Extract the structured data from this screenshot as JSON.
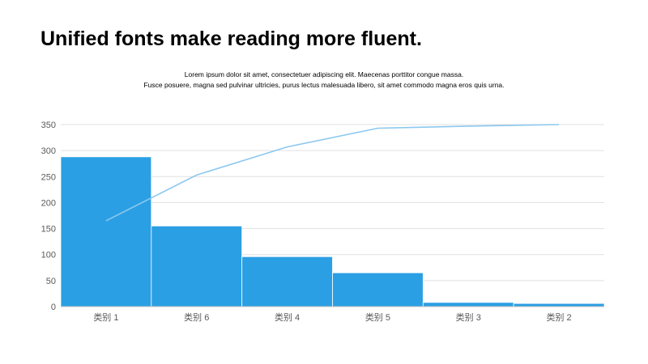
{
  "slide": {
    "title": "Unified fonts make reading more fluent.",
    "subtitle_line1": "Lorem ipsum dolor sit amet, consectetuer adipiscing elit. Maecenas porttitor congue massa.",
    "subtitle_line2": "Fusce posuere, magna sed pulvinar  ultricies, purus lectus malesuada libero, sit amet commodo magna eros quis urna."
  },
  "chart_data": {
    "type": "bar",
    "subtype": "pareto",
    "categories": [
      "类别 1",
      "类别 6",
      "类别 4",
      "类别 5",
      "类别 3",
      "类别 2"
    ],
    "series": [
      {
        "type": "bar",
        "values": [
          288,
          155,
          96,
          65,
          8,
          6
        ],
        "color": "#2B9FE4"
      },
      {
        "type": "line",
        "values": [
          165,
          253,
          307,
          343,
          347,
          350
        ],
        "color": "#8CC8EE"
      }
    ],
    "yticks": [
      0,
      50,
      100,
      150,
      200,
      250,
      300,
      350
    ],
    "ylim": [
      0,
      350
    ],
    "grid": true,
    "legend": "none",
    "gridline_color": "#E0E0E0",
    "axis_color": "#BFBFBF",
    "title": "",
    "xlabel": "",
    "ylabel": ""
  }
}
